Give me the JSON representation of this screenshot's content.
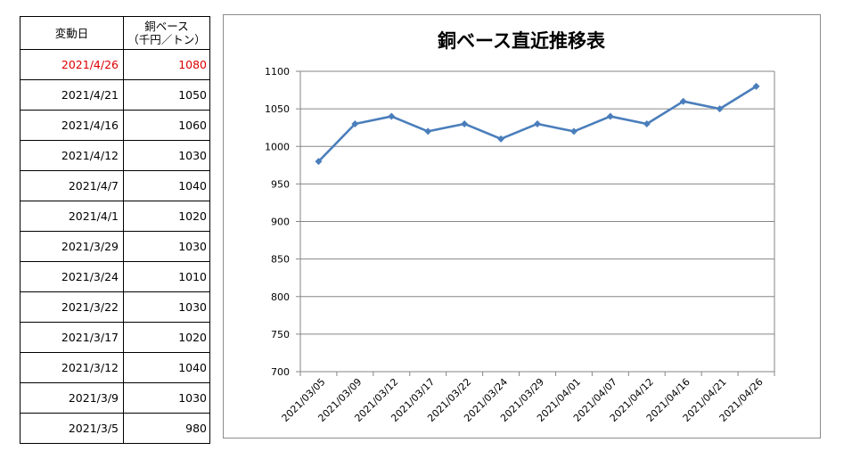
{
  "table": {
    "header_date": "変動日",
    "header_value_line1": "銅ベース",
    "header_value_line2": "（千円／トン）",
    "rows": [
      {
        "date": "2021/4/26",
        "value": "1080"
      },
      {
        "date": "2021/4/21",
        "value": "1050"
      },
      {
        "date": "2021/4/16",
        "value": "1060"
      },
      {
        "date": "2021/4/12",
        "value": "1030"
      },
      {
        "date": "2021/4/7",
        "value": "1040"
      },
      {
        "date": "2021/4/1",
        "value": "1020"
      },
      {
        "date": "2021/3/29",
        "value": "1030"
      },
      {
        "date": "2021/3/24",
        "value": "1010"
      },
      {
        "date": "2021/3/22",
        "value": "1030"
      },
      {
        "date": "2021/3/17",
        "value": "1020"
      },
      {
        "date": "2021/3/12",
        "value": "1040"
      },
      {
        "date": "2021/3/9",
        "value": "1030"
      },
      {
        "date": "2021/3/5",
        "value": "980"
      }
    ],
    "highlight_color": "#e00000"
  },
  "chart_data": {
    "type": "line",
    "title": "銅ベース直近推移表",
    "xlabel": "",
    "ylabel": "",
    "categories": [
      "2021/03/05",
      "2021/03/09",
      "2021/03/12",
      "2021/03/17",
      "2021/03/22",
      "2021/03/24",
      "2021/03/29",
      "2021/04/01",
      "2021/04/07",
      "2021/04/12",
      "2021/04/16",
      "2021/04/21",
      "2021/04/26"
    ],
    "series": [
      {
        "values": [
          980,
          1030,
          1040,
          1020,
          1030,
          1010,
          1030,
          1020,
          1040,
          1030,
          1060,
          1050,
          1080
        ],
        "color": "#4a7ebb"
      }
    ],
    "ylim": [
      700,
      1100
    ],
    "yticks": [
      700,
      750,
      800,
      850,
      900,
      950,
      1000,
      1050,
      1100
    ],
    "grid": true,
    "marker": "diamond"
  }
}
